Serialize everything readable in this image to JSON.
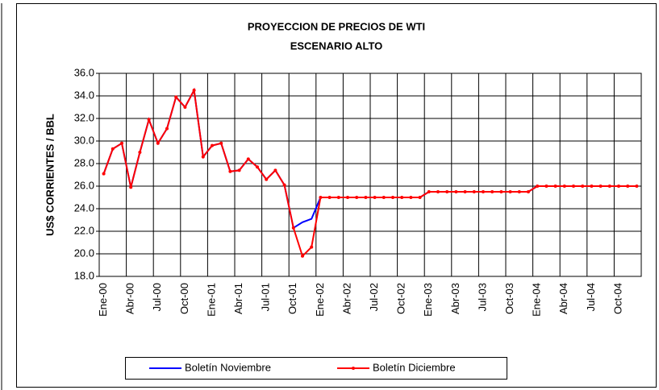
{
  "chart_data": {
    "type": "line",
    "title": "PROYECCION DE PRECIOS DE WTI",
    "subtitle": "ESCENARIO ALTO",
    "y_label": "US$ CORRIENTES / BBL",
    "categories": [
      "Ene-00",
      null,
      null,
      "Abr-00",
      null,
      null,
      "Jul-00",
      null,
      null,
      "Oct-00",
      null,
      null,
      "Ene-01",
      null,
      null,
      "Abr-01",
      null,
      null,
      "Jul-01",
      null,
      null,
      "Oct-01",
      null,
      null,
      "Ene-02",
      null,
      null,
      "Abr-02",
      null,
      null,
      "Jul-02",
      null,
      null,
      "Oct-02",
      null,
      null,
      "Ene-03",
      null,
      null,
      "Abr-03",
      null,
      null,
      "Jul-03",
      null,
      null,
      "Oct-03",
      null,
      null,
      "Ene-04",
      null,
      null,
      "Abr-04",
      null,
      null,
      "Jul-04",
      null,
      null,
      "Oct-04",
      null,
      null
    ],
    "series": [
      {
        "name": "Boletín Noviembre",
        "color": "#0000ff",
        "markers": false,
        "values": [
          27.1,
          29.3,
          29.8,
          25.9,
          29.0,
          31.9,
          29.8,
          31.1,
          33.9,
          33.0,
          34.5,
          28.6,
          29.6,
          29.8,
          27.3,
          27.4,
          28.4,
          27.7,
          26.6,
          27.4,
          26.1,
          22.3,
          22.8,
          23.1,
          25.0,
          25.0,
          25.0,
          25.0,
          25.0,
          25.0,
          25.0,
          25.0,
          25.0,
          25.0,
          25.0,
          25.0,
          25.5,
          25.5,
          25.5,
          25.5,
          25.5,
          25.5,
          25.5,
          25.5,
          25.5,
          25.5,
          25.5,
          25.5,
          26.0,
          26.0,
          26.0,
          26.0,
          26.0,
          26.0,
          26.0,
          26.0,
          26.0,
          26.0,
          26.0,
          26.0
        ]
      },
      {
        "name": "Boletín Diciembre",
        "color": "#ff0000",
        "markers": true,
        "values": [
          27.1,
          29.3,
          29.8,
          25.9,
          29.0,
          31.9,
          29.8,
          31.1,
          33.9,
          33.0,
          34.5,
          28.6,
          29.6,
          29.8,
          27.3,
          27.4,
          28.4,
          27.7,
          26.6,
          27.4,
          26.1,
          22.3,
          19.8,
          20.6,
          25.0,
          25.0,
          25.0,
          25.0,
          25.0,
          25.0,
          25.0,
          25.0,
          25.0,
          25.0,
          25.0,
          25.0,
          25.5,
          25.5,
          25.5,
          25.5,
          25.5,
          25.5,
          25.5,
          25.5,
          25.5,
          25.5,
          25.5,
          25.5,
          26.0,
          26.0,
          26.0,
          26.0,
          26.0,
          26.0,
          26.0,
          26.0,
          26.0,
          26.0,
          26.0,
          26.0
        ]
      }
    ],
    "ylim": [
      18,
      36
    ],
    "yticks": [
      {
        "value": 18,
        "label": "18.0"
      },
      {
        "value": 20,
        "label": "20.0"
      },
      {
        "value": 22,
        "label": "22.0"
      },
      {
        "value": 24,
        "label": "24.0"
      },
      {
        "value": 26,
        "label": "26.0"
      },
      {
        "value": 28,
        "label": "28.0"
      },
      {
        "value": 30,
        "label": "30.0"
      },
      {
        "value": 32,
        "label": "32.0"
      },
      {
        "value": 34,
        "label": "34.0"
      },
      {
        "value": 36,
        "label": "36.0"
      }
    ],
    "grid": true,
    "legend": "bottom"
  }
}
